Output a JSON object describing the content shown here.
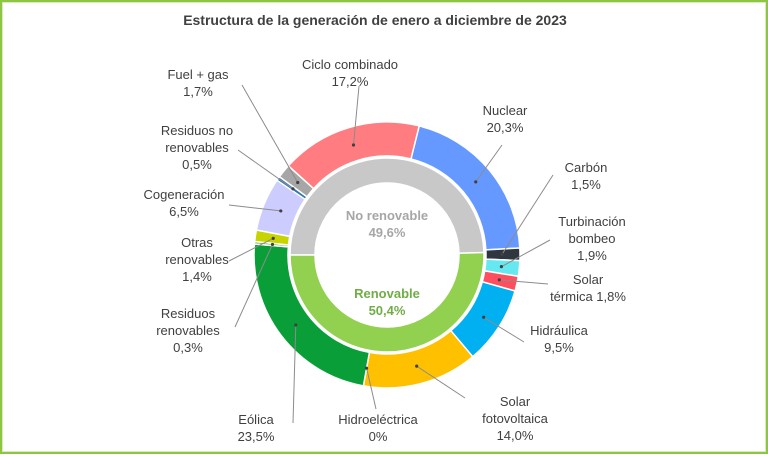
{
  "chart_data": {
    "type": "pie",
    "subtype": "nested-donut",
    "title": "Estructura de la generación de enero a diciembre de 2023",
    "inner_ring": [
      {
        "label": "No renovable",
        "value_label": "49,6%",
        "value": 49.6,
        "color": "#c8c8c8",
        "label_color": "#a6a6a6"
      },
      {
        "label": "Renovable",
        "value_label": "50,4%",
        "value": 50.4,
        "color": "#92d050",
        "label_color": "#70ad47"
      }
    ],
    "outer_ring": [
      {
        "lines": [
          "Nuclear",
          "20,3%"
        ],
        "value": 20.3,
        "color": "#6699ff"
      },
      {
        "lines": [
          "Carbón",
          "1,5%"
        ],
        "value": 1.5,
        "color": "#2f3640"
      },
      {
        "lines": [
          "Turbinación",
          "bombeo",
          "1,9%"
        ],
        "value": 1.9,
        "color": "#66e8f0"
      },
      {
        "lines": [
          "Solar",
          "térmica 1,8%"
        ],
        "value": 1.8,
        "color": "#ff4f5e"
      },
      {
        "lines": [
          "Hidráulica",
          "9,5%"
        ],
        "value": 9.5,
        "color": "#00b0f0"
      },
      {
        "lines": [
          "Solar",
          "fotovoltaica",
          "14,0%"
        ],
        "value": 14.0,
        "color": "#ffc000"
      },
      {
        "lines": [
          "Hidroeléctrica",
          "0%"
        ],
        "value": 0.0,
        "color": "#0a6e2e"
      },
      {
        "lines": [
          "Eólica",
          "23,5%"
        ],
        "value": 23.5,
        "color": "#0a9e38"
      },
      {
        "lines": [
          "Residuos",
          "renovables",
          "0,3%"
        ],
        "value": 0.3,
        "color": "#6fb04a"
      },
      {
        "lines": [
          "Otras",
          "renovables",
          "1,4%"
        ],
        "value": 1.4,
        "color": "#c8d400"
      },
      {
        "lines": [
          "Cogeneración",
          "6,5%"
        ],
        "value": 6.5,
        "color": "#ccccff"
      },
      {
        "lines": [
          "Residuos no",
          "renovables",
          "0,5%"
        ],
        "value": 0.5,
        "color": "#2e75b6"
      },
      {
        "lines": [
          "Fuel + gas",
          "1,7%"
        ],
        "value": 1.7,
        "color": "#a6a6a6"
      },
      {
        "lines": [
          "Ciclo combinado",
          "17,2%"
        ],
        "value": 17.2,
        "color": "#ff7c80"
      }
    ]
  }
}
